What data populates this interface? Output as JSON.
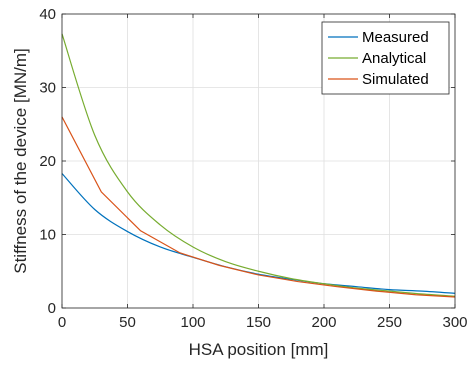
{
  "chart_data": {
    "type": "line",
    "xlabel": "HSA position [mm]",
    "ylabel": "Stiffness of the device [MN/m]",
    "xlim": [
      0,
      300
    ],
    "ylim": [
      0,
      40
    ],
    "xticks": [
      0,
      50,
      100,
      150,
      200,
      250,
      300
    ],
    "yticks": [
      0,
      10,
      20,
      30,
      40
    ],
    "grid": true,
    "legend_position": "top-right",
    "x": [
      0,
      25,
      50,
      75,
      100,
      125,
      150,
      175,
      200,
      225,
      250,
      275,
      300
    ],
    "series": [
      {
        "name": "Measured",
        "color": "#0072BD",
        "x": [
          0,
          25,
          50,
          75,
          100,
          125,
          150,
          175,
          200,
          225,
          250,
          275,
          300
        ],
        "values": [
          18.3,
          13.4,
          10.4,
          8.3,
          6.9,
          5.6,
          4.6,
          3.9,
          3.3,
          2.9,
          2.5,
          2.3,
          2.0
        ]
      },
      {
        "name": "Analytical",
        "color": "#77AC30",
        "x": [
          0,
          25,
          50,
          75,
          100,
          125,
          150,
          175,
          200,
          225,
          250,
          275,
          300
        ],
        "values": [
          37.3,
          23.5,
          15.8,
          11.3,
          8.3,
          6.3,
          5.0,
          4.0,
          3.3,
          2.7,
          2.3,
          1.9,
          1.6
        ]
      },
      {
        "name": "Simulated",
        "color": "#D95319",
        "x": [
          0,
          30,
          60,
          90,
          120,
          150,
          180,
          210,
          240,
          270,
          300
        ],
        "values": [
          26.0,
          15.8,
          10.5,
          7.5,
          5.8,
          4.5,
          3.6,
          2.9,
          2.3,
          1.8,
          1.5
        ]
      }
    ]
  }
}
